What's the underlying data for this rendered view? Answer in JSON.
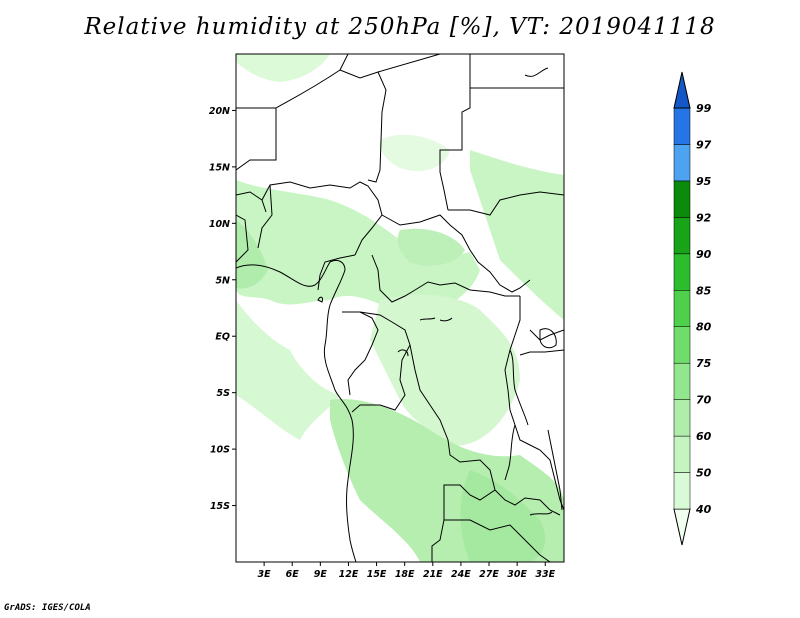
{
  "title": "Relative humidity at 250hPa [%], VT: 2019041118",
  "credit": "GrADS: IGES/COLA",
  "map": {
    "lat_labels": [
      {
        "lat": 20,
        "label": "20N"
      },
      {
        "lat": 15,
        "label": "15N"
      },
      {
        "lat": 10,
        "label": "10N"
      },
      {
        "lat": 5,
        "label": "5N"
      },
      {
        "lat": 0,
        "label": "EQ"
      },
      {
        "lat": -5,
        "label": "5S"
      },
      {
        "lat": -10,
        "label": "10S"
      },
      {
        "lat": -15,
        "label": "15S"
      }
    ],
    "lon_labels": [
      {
        "lon": 3,
        "label": "3E"
      },
      {
        "lon": 6,
        "label": "6E"
      },
      {
        "lon": 9,
        "label": "9E"
      },
      {
        "lon": 12,
        "label": "12E"
      },
      {
        "lon": 15,
        "label": "15E"
      },
      {
        "lon": 18,
        "label": "18E"
      },
      {
        "lon": 21,
        "label": "21E"
      },
      {
        "lon": 24,
        "label": "24E"
      },
      {
        "lon": 27,
        "label": "27E"
      },
      {
        "lon": 30,
        "label": "30E"
      },
      {
        "lon": 33,
        "label": "33E"
      }
    ],
    "lon_range": [
      0,
      35
    ],
    "lat_range": [
      -20,
      25
    ]
  },
  "colorbar": {
    "levels": [
      "40",
      "50",
      "60",
      "70",
      "75",
      "80",
      "85",
      "90",
      "92",
      "95",
      "97",
      "99"
    ],
    "colors": [
      "#f0fff0",
      "#d9fad6",
      "#c4f5c0",
      "#aeeeaa",
      "#92e68e",
      "#6fdc6c",
      "#4fd04d",
      "#2cbd2c",
      "#18a318",
      "#0b8a0b",
      "#4da3f0",
      "#2575e6",
      "#1357c8"
    ]
  }
}
